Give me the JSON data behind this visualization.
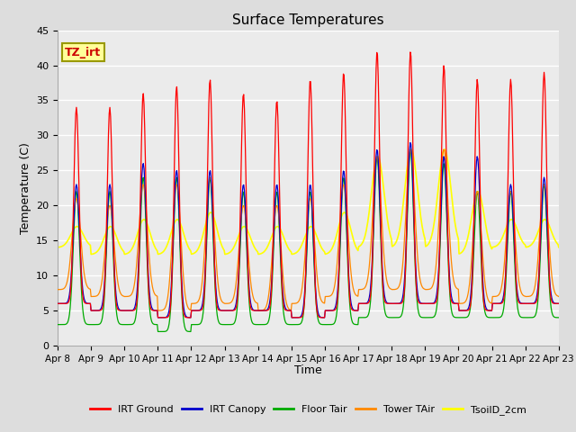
{
  "title": "Surface Temperatures",
  "ylabel": "Temperature (C)",
  "xlabel": "Time",
  "ylim": [
    0,
    45
  ],
  "yticks": [
    0,
    5,
    10,
    15,
    20,
    25,
    30,
    35,
    40,
    45
  ],
  "xtick_labels": [
    "Apr 8",
    "Apr 9",
    "Apr 10",
    "Apr 11",
    "Apr 12",
    "Apr 13",
    "Apr 14",
    "Apr 15",
    "Apr 16",
    "Apr 17",
    "Apr 18",
    "Apr 19",
    "Apr 20",
    "Apr 21",
    "Apr 22",
    "Apr 23"
  ],
  "annotation_text": "TZ_irt",
  "annotation_color": "#cc0000",
  "annotation_bg": "#ffff99",
  "annotation_border": "#999900",
  "series_colors": {
    "IRT Ground": "#ff0000",
    "IRT Canopy": "#0000cc",
    "Floor Tair": "#00aa00",
    "Tower TAir": "#ff8800",
    "TsoilD_2cm": "#ffff00"
  },
  "bg_color": "#dddddd",
  "plot_bg": "#ebebeb",
  "grid_color": "#ffffff",
  "n_days": 15,
  "irt_g_nights": [
    6,
    5,
    5,
    4,
    5,
    5,
    5,
    4,
    5,
    6,
    6,
    6,
    5,
    6,
    6
  ],
  "irt_g_peaks": [
    34,
    34,
    36,
    37,
    38,
    36,
    35,
    38,
    39,
    42,
    42,
    40,
    38,
    38,
    39
  ],
  "irt_c_nights": [
    6,
    5,
    5,
    4,
    5,
    5,
    5,
    4,
    5,
    6,
    6,
    6,
    5,
    6,
    6
  ],
  "irt_c_peaks": [
    23,
    23,
    26,
    25,
    25,
    23,
    23,
    23,
    25,
    28,
    29,
    27,
    27,
    23,
    24
  ],
  "irt_f_nights": [
    3,
    3,
    3,
    2,
    3,
    3,
    3,
    3,
    3,
    4,
    4,
    4,
    4,
    4,
    4
  ],
  "irt_f_peaks": [
    22,
    22,
    24,
    24,
    24,
    22,
    22,
    22,
    24,
    27,
    28,
    26,
    22,
    22,
    23
  ],
  "tow_nights": [
    8,
    7,
    7,
    5,
    6,
    6,
    5,
    6,
    7,
    8,
    8,
    8,
    6,
    7,
    7
  ],
  "tow_peaks": [
    21,
    20,
    23,
    23,
    24,
    20,
    20,
    21,
    23,
    27,
    28,
    28,
    22,
    22,
    23
  ],
  "soil_nights": [
    14,
    13,
    13,
    13,
    13,
    13,
    13,
    13,
    13,
    14,
    14,
    14,
    13,
    14,
    14
  ],
  "soil_peaks": [
    17,
    17,
    18,
    18,
    19,
    17,
    17,
    17,
    19,
    27,
    28,
    28,
    22,
    18,
    18
  ],
  "peak_hour_sharp": 13.5,
  "peak_sigma_ground": 1.8,
  "peak_sigma_canopy": 2.2,
  "peak_sigma_floor": 2.2,
  "peak_sigma_tower": 3.0,
  "peak_sigma_soil": 4.5,
  "title_fontsize": 11,
  "axis_fontsize": 8,
  "legend_fontsize": 8
}
